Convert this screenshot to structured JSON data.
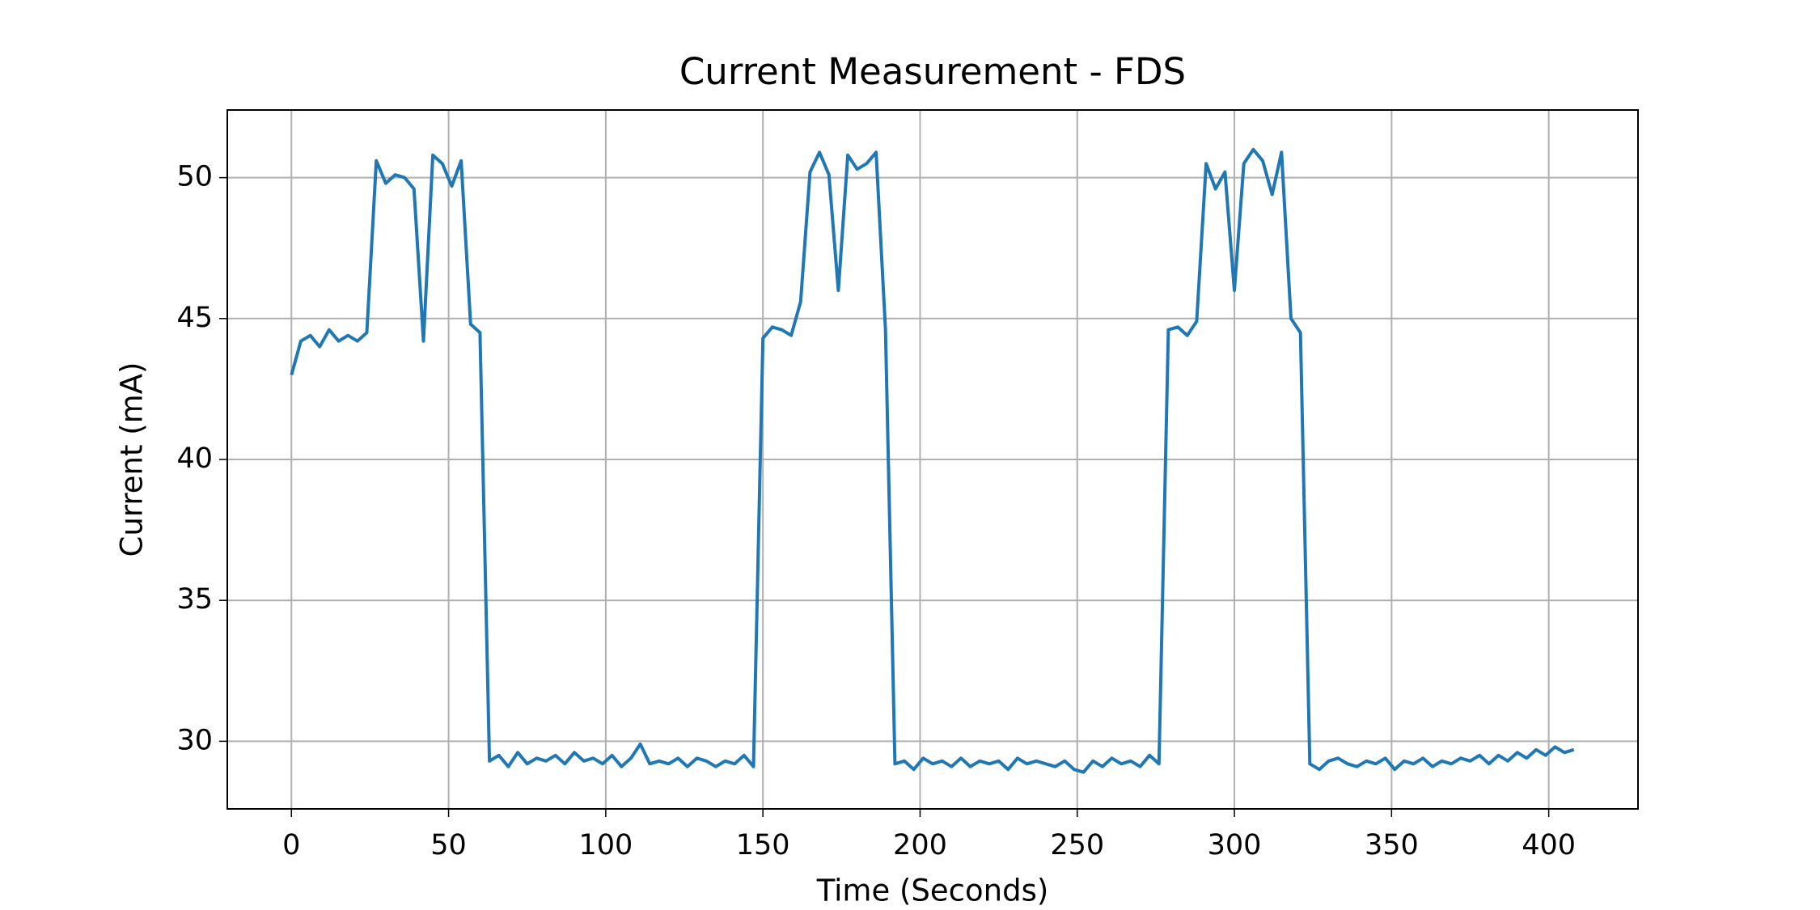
{
  "chart_data": {
    "type": "line",
    "title": "Current Measurement - FDS",
    "x_label": "Time (Seconds)",
    "y_label": "Current (mA)",
    "x": [
      0,
      3,
      6,
      9,
      12,
      15,
      18,
      21,
      24,
      27,
      30,
      33,
      36,
      39,
      42,
      45,
      48,
      51,
      54,
      57,
      60,
      63,
      66,
      69,
      72,
      75,
      78,
      81,
      84,
      87,
      90,
      93,
      96,
      99,
      102,
      105,
      108,
      111,
      114,
      117,
      120,
      123,
      126,
      129,
      132,
      135,
      138,
      141,
      144,
      147,
      150,
      153,
      156,
      159,
      162,
      165,
      168,
      171,
      174,
      177,
      180,
      183,
      186,
      189,
      192,
      195,
      198,
      201,
      204,
      207,
      210,
      213,
      216,
      219,
      222,
      225,
      228,
      231,
      234,
      237,
      240,
      243,
      246,
      249,
      252,
      255,
      258,
      261,
      264,
      267,
      270,
      273,
      276,
      279,
      282,
      285,
      288,
      291,
      294,
      297,
      300,
      303,
      306,
      309,
      312,
      315,
      318,
      321,
      324,
      327,
      330,
      333,
      336,
      339,
      342,
      345,
      348,
      351,
      354,
      357,
      360,
      363,
      366,
      369,
      372,
      375,
      378,
      381,
      384,
      387,
      390,
      393,
      396,
      399,
      402,
      405,
      408
    ],
    "series": [
      {
        "name": "Current",
        "color": "#1f77b4",
        "values": [
          43.0,
          44.2,
          44.4,
          44.0,
          44.6,
          44.2,
          44.4,
          44.2,
          44.5,
          50.6,
          49.8,
          50.1,
          50.0,
          49.6,
          44.2,
          50.8,
          50.5,
          49.7,
          50.6,
          44.8,
          44.5,
          29.3,
          29.5,
          29.1,
          29.6,
          29.2,
          29.4,
          29.3,
          29.5,
          29.2,
          29.6,
          29.3,
          29.4,
          29.2,
          29.5,
          29.1,
          29.4,
          29.9,
          29.2,
          29.3,
          29.2,
          29.4,
          29.1,
          29.4,
          29.3,
          29.1,
          29.3,
          29.2,
          29.5,
          29.1,
          44.3,
          44.7,
          44.6,
          44.4,
          45.6,
          50.2,
          50.9,
          50.1,
          46.0,
          50.8,
          50.3,
          50.5,
          50.9,
          44.6,
          29.2,
          29.3,
          29.0,
          29.4,
          29.2,
          29.3,
          29.1,
          29.4,
          29.1,
          29.3,
          29.2,
          29.3,
          29.0,
          29.4,
          29.2,
          29.3,
          29.2,
          29.1,
          29.3,
          29.0,
          28.9,
          29.3,
          29.1,
          29.4,
          29.2,
          29.3,
          29.1,
          29.5,
          29.2,
          44.6,
          44.7,
          44.4,
          44.9,
          50.5,
          49.6,
          50.2,
          46.0,
          50.5,
          51.0,
          50.6,
          49.4,
          50.9,
          45.0,
          44.5,
          29.2,
          29.0,
          29.3,
          29.4,
          29.2,
          29.1,
          29.3,
          29.2,
          29.4,
          29.0,
          29.3,
          29.2,
          29.4,
          29.1,
          29.3,
          29.2,
          29.4,
          29.3,
          29.5,
          29.2,
          29.5,
          29.3,
          29.6,
          29.4,
          29.7,
          29.5,
          29.8,
          29.6,
          29.7
        ]
      }
    ],
    "xlim": [
      -20.4,
      428.4
    ],
    "ylim": [
      27.6,
      52.4
    ],
    "xticks": [
      0,
      50,
      100,
      150,
      200,
      250,
      300,
      350,
      400
    ],
    "yticks": [
      30,
      35,
      40,
      45,
      50
    ],
    "grid": true
  }
}
